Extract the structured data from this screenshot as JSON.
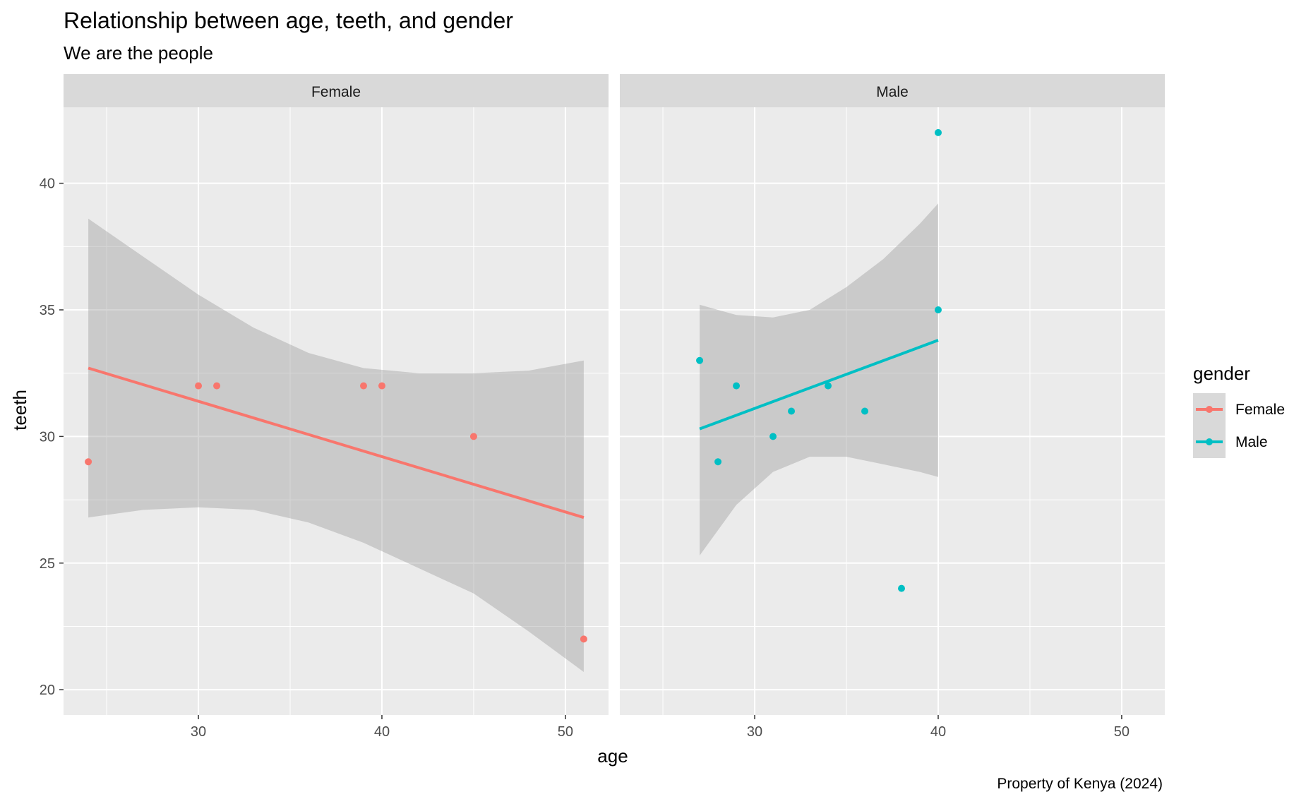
{
  "chart_data": {
    "type": "scatter",
    "title": "Relationship between age, teeth, and gender",
    "subtitle": "We are the people",
    "caption": "Property of Kenya (2024)",
    "xlabel": "age",
    "ylabel": "teeth",
    "xlim": [
      22.65,
      52.35
    ],
    "ylim": [
      19.0,
      43.0
    ],
    "x_ticks": [
      30,
      40,
      50
    ],
    "y_ticks": [
      20,
      25,
      30,
      35,
      40
    ],
    "grid": true,
    "legend": {
      "title": "gender",
      "position": "right",
      "entries": [
        {
          "label": "Female",
          "color": "#F8766D"
        },
        {
          "label": "Male",
          "color": "#00BFC4"
        }
      ]
    },
    "panels": [
      {
        "label": "Female",
        "color": "#F8766D",
        "points": [
          {
            "x": 24,
            "y": 29
          },
          {
            "x": 30,
            "y": 32
          },
          {
            "x": 31,
            "y": 32
          },
          {
            "x": 39,
            "y": 32
          },
          {
            "x": 40,
            "y": 32
          },
          {
            "x": 45,
            "y": 30
          },
          {
            "x": 51,
            "y": 22
          }
        ],
        "fit": {
          "x": [
            24,
            51
          ],
          "y": [
            32.7,
            26.8
          ]
        },
        "band": {
          "x": [
            24,
            27,
            30,
            33,
            36,
            39,
            42,
            45,
            48,
            51
          ],
          "upper": [
            38.6,
            37.1,
            35.6,
            34.3,
            33.3,
            32.7,
            32.5,
            32.5,
            32.6,
            33.0
          ],
          "lower": [
            26.8,
            27.1,
            27.2,
            27.1,
            26.6,
            25.8,
            24.8,
            23.8,
            22.3,
            20.7
          ]
        }
      },
      {
        "label": "Male",
        "color": "#00BFC4",
        "points": [
          {
            "x": 27,
            "y": 33
          },
          {
            "x": 28,
            "y": 29
          },
          {
            "x": 29,
            "y": 32
          },
          {
            "x": 31,
            "y": 30
          },
          {
            "x": 32,
            "y": 31
          },
          {
            "x": 34,
            "y": 32
          },
          {
            "x": 36,
            "y": 31
          },
          {
            "x": 38,
            "y": 24
          },
          {
            "x": 40,
            "y": 35
          },
          {
            "x": 40,
            "y": 42
          }
        ],
        "fit": {
          "x": [
            27,
            40
          ],
          "y": [
            30.3,
            33.8
          ]
        },
        "band": {
          "x": [
            27,
            29,
            31,
            33,
            35,
            37,
            39,
            40
          ],
          "upper": [
            35.2,
            34.8,
            34.7,
            35.0,
            35.9,
            37.0,
            38.4,
            39.2
          ],
          "lower": [
            25.3,
            27.3,
            28.6,
            29.2,
            29.2,
            28.9,
            28.6,
            28.4
          ]
        }
      }
    ]
  }
}
